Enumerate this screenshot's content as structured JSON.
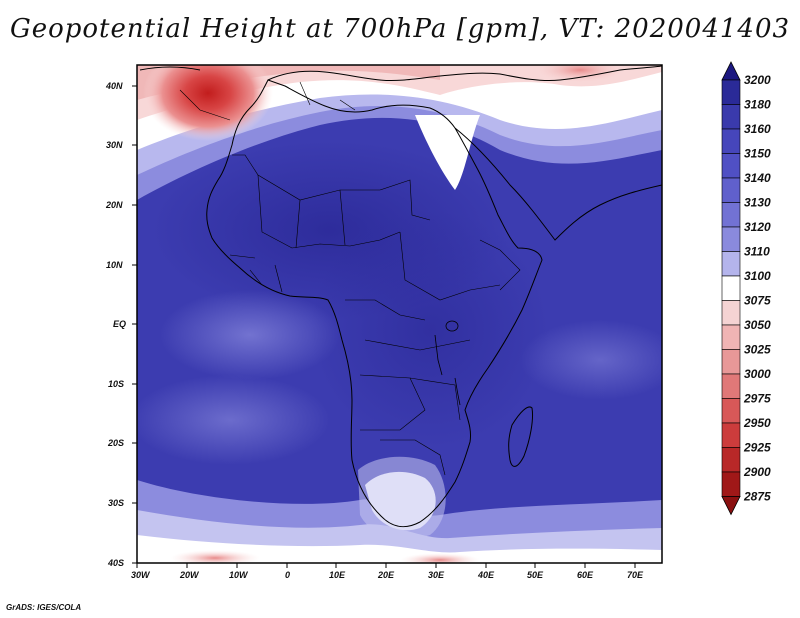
{
  "title": "Geopotential Height at 700hPa [gpm], VT: 2020041403",
  "credit": "GrADS: IGES/COLA",
  "chart_data": {
    "type": "heatmap",
    "title": "Geopotential Height at 700hPa [gpm], VT: 2020041403",
    "variable": "Geopotential Height at 700hPa",
    "units": "gpm",
    "valid_time": "2020041403",
    "lon_range": [
      -30,
      76
    ],
    "lat_range": [
      -40,
      45
    ],
    "x_ticks": [
      "30W",
      "20W",
      "10W",
      "0",
      "10E",
      "20E",
      "30E",
      "40E",
      "50E",
      "60E",
      "70E"
    ],
    "x_tick_values": [
      -30,
      -20,
      -10,
      0,
      10,
      20,
      30,
      40,
      50,
      60,
      70
    ],
    "y_ticks": [
      "40N",
      "30N",
      "20N",
      "10N",
      "EQ",
      "10S",
      "20S",
      "30S",
      "40S"
    ],
    "y_tick_values": [
      40,
      30,
      20,
      10,
      0,
      -10,
      -20,
      -30,
      -40
    ],
    "colorbar": {
      "levels": [
        "3200",
        "3180",
        "3160",
        "3150",
        "3140",
        "3130",
        "3120",
        "3110",
        "3100",
        "3075",
        "3050",
        "3025",
        "3000",
        "2975",
        "2950",
        "2925",
        "2900",
        "2875"
      ],
      "colors": [
        "#1c1880",
        "#2a2a98",
        "#3a3aac",
        "#4646bb",
        "#5050c4",
        "#6060cc",
        "#7272d4",
        "#8a8add",
        "#b4b4ec",
        "#ffffff",
        "#f5d3d3",
        "#f0b4b4",
        "#e89898",
        "#e07878",
        "#d85858",
        "#cc3c3c",
        "#b82828",
        "#a01818",
        "#8a1010"
      ]
    },
    "features": [
      {
        "label": "high-low center",
        "lon": -15,
        "lat": 38.5
      }
    ]
  }
}
